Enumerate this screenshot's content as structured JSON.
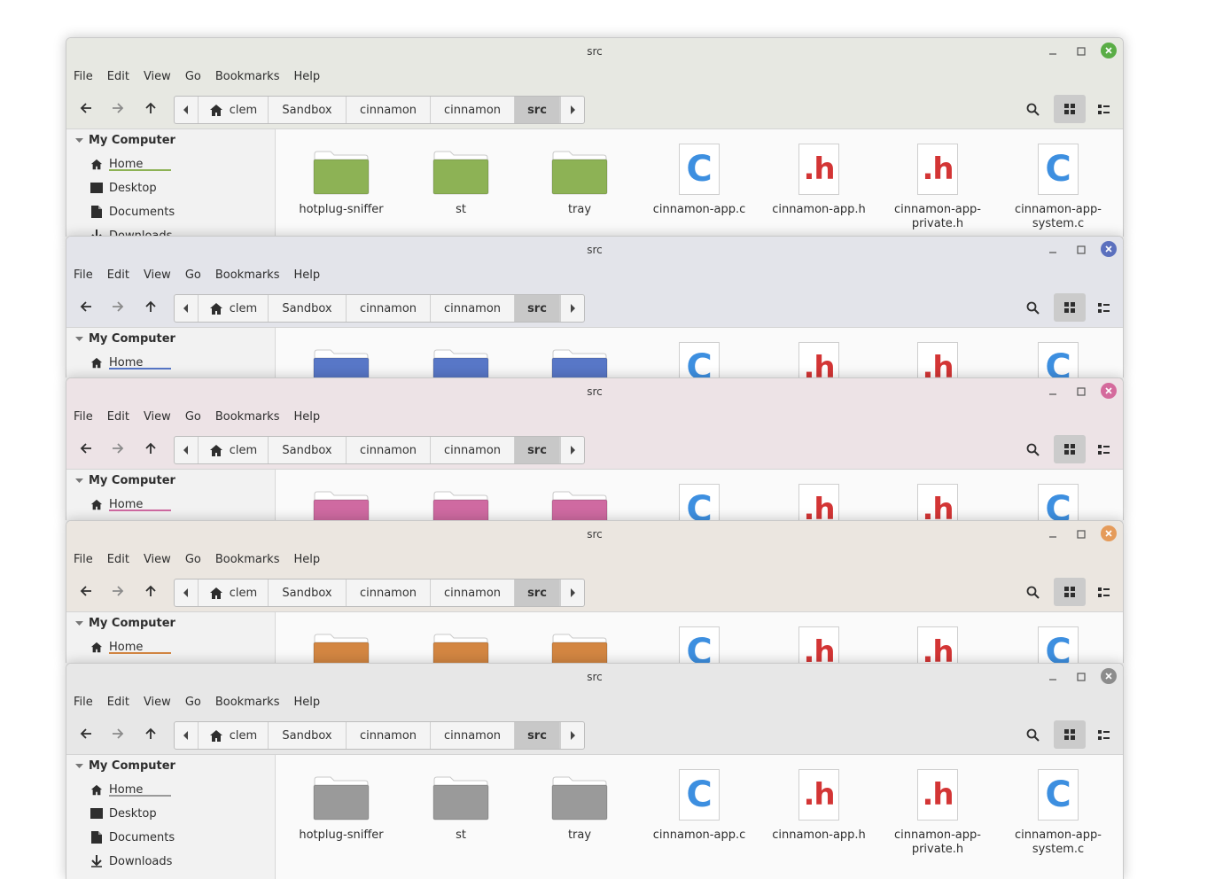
{
  "windows": [
    {
      "title": "src",
      "accent": "#8db255",
      "titlebar_bg": "#e7e8e2",
      "close_icon_bg": "#5aad46",
      "variant": "green"
    },
    {
      "title": "src",
      "accent": "#5877c7",
      "titlebar_bg": "#e3e4ea",
      "close_icon_bg": "#5b70be",
      "variant": "blue"
    },
    {
      "title": "src",
      "accent": "#cf6aa1",
      "titlebar_bg": "#ede3e6",
      "close_icon_bg": "#d46a9c",
      "variant": "pink"
    },
    {
      "title": "src",
      "accent": "#d38642",
      "titlebar_bg": "#ebe6e0",
      "close_icon_bg": "#e59b5a",
      "variant": "orange"
    },
    {
      "title": "src",
      "accent": "#9a9a9a",
      "titlebar_bg": "#e7e7e7",
      "close_icon_bg": "#8c8c8c",
      "variant": "grey"
    }
  ],
  "menu": [
    "File",
    "Edit",
    "View",
    "Go",
    "Bookmarks",
    "Help"
  ],
  "breadcrumbs": [
    "clem",
    "Sandbox",
    "cinnamon",
    "cinnamon",
    "src"
  ],
  "sidebar": {
    "section": "My Computer",
    "items": [
      {
        "label": "Home",
        "icon": "home-icon"
      },
      {
        "label": "Desktop",
        "icon": "desktop-icon"
      },
      {
        "label": "Documents",
        "icon": "document-icon"
      },
      {
        "label": "Downloads",
        "icon": "download-icon"
      }
    ]
  },
  "files": [
    {
      "name": "hotplug-sniffer",
      "type": "folder"
    },
    {
      "name": "st",
      "type": "folder"
    },
    {
      "name": "tray",
      "type": "folder"
    },
    {
      "name": "cinnamon-app.c",
      "type": "c"
    },
    {
      "name": "cinnamon-app.h",
      "type": "h"
    },
    {
      "name": "cinnamon-app-\nprivate.h",
      "type": "h"
    },
    {
      "name": "cinnamon-app-\nsystem.c",
      "type": "c"
    }
  ],
  "file_icon_text": {
    "c": "C",
    "h": ".h"
  }
}
